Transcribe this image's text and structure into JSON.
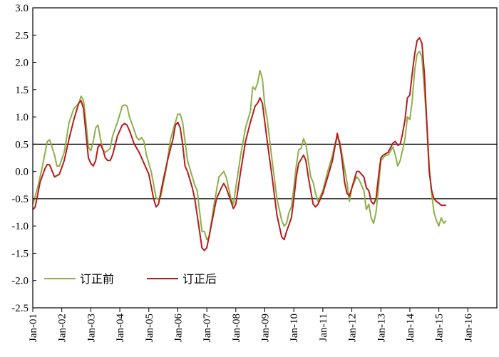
{
  "chart_data": {
    "type": "line",
    "title": "",
    "xlabel": "",
    "ylabel": "",
    "ylim": [
      -2.5,
      3.0
    ],
    "yticks": [
      "3.0",
      "2.5",
      "2.0",
      "1.5",
      "1.0",
      "0.5",
      "0.0",
      "-0.5",
      "-1.0",
      "-1.5",
      "-2.0",
      "-2.5"
    ],
    "xlim": [
      0,
      192
    ],
    "xticks": [
      {
        "label": "Jan-01",
        "x": 0
      },
      {
        "label": "Jan-02",
        "x": 12
      },
      {
        "label": "Jan-03",
        "x": 24
      },
      {
        "label": "Jan-04",
        "x": 36
      },
      {
        "label": "Jan-05",
        "x": 48
      },
      {
        "label": "Jan-06",
        "x": 60
      },
      {
        "label": "Jan-07",
        "x": 72
      },
      {
        "label": "Jan-08",
        "x": 84
      },
      {
        "label": "Jan-09",
        "x": 96
      },
      {
        "label": "Jan-10",
        "x": 108
      },
      {
        "label": "Jan-11",
        "x": 120
      },
      {
        "label": "Jan-12",
        "x": 132
      },
      {
        "label": "Jan-13",
        "x": 144
      },
      {
        "label": "Jan-14",
        "x": 156
      },
      {
        "label": "Jan-15",
        "x": 168
      },
      {
        "label": "Jan-16",
        "x": 180
      }
    ],
    "reference_lines": [
      0.5,
      -0.5
    ],
    "legend_position": "bottom-left",
    "series": [
      {
        "name": "订正前",
        "color": "#8db04a",
        "points": [
          [
            0,
            -0.6
          ],
          [
            2,
            -0.3
          ],
          [
            4,
            0.1
          ],
          [
            6,
            0.55
          ],
          [
            7,
            0.58
          ],
          [
            9,
            0.3
          ],
          [
            10,
            0.1
          ],
          [
            11,
            0.1
          ],
          [
            13,
            0.35
          ],
          [
            15,
            0.9
          ],
          [
            17,
            1.15
          ],
          [
            19,
            1.25
          ],
          [
            20,
            1.38
          ],
          [
            21,
            1.3
          ],
          [
            22,
            0.9
          ],
          [
            23,
            0.45
          ],
          [
            24,
            0.38
          ],
          [
            25,
            0.55
          ],
          [
            26,
            0.8
          ],
          [
            27,
            0.85
          ],
          [
            28,
            0.6
          ],
          [
            29,
            0.4
          ],
          [
            30,
            0.35
          ],
          [
            32,
            0.42
          ],
          [
            33,
            0.65
          ],
          [
            35,
            0.9
          ],
          [
            37,
            1.2
          ],
          [
            38,
            1.22
          ],
          [
            39,
            1.2
          ],
          [
            40,
            1.0
          ],
          [
            42,
            0.75
          ],
          [
            43,
            0.62
          ],
          [
            44,
            0.58
          ],
          [
            45,
            0.62
          ],
          [
            46,
            0.55
          ],
          [
            47,
            0.3
          ],
          [
            49,
            0.0
          ],
          [
            51,
            -0.48
          ],
          [
            52,
            -0.52
          ],
          [
            53,
            -0.45
          ],
          [
            55,
            0.0
          ],
          [
            57,
            0.6
          ],
          [
            59,
            0.9
          ],
          [
            60,
            1.05
          ],
          [
            61,
            1.05
          ],
          [
            62,
            0.9
          ],
          [
            63,
            0.55
          ],
          [
            64,
            0.2
          ],
          [
            66,
            -0.1
          ],
          [
            67,
            -0.25
          ],
          [
            68,
            -0.35
          ],
          [
            70,
            -1.1
          ],
          [
            71,
            -1.1
          ],
          [
            72,
            -1.25
          ],
          [
            73,
            -1.2
          ],
          [
            75,
            -0.6
          ],
          [
            77,
            -0.1
          ],
          [
            79,
            0.0
          ],
          [
            80,
            -0.1
          ],
          [
            82,
            -0.5
          ],
          [
            83,
            -0.6
          ],
          [
            84,
            -0.3
          ],
          [
            86,
            0.3
          ],
          [
            88,
            0.8
          ],
          [
            90,
            1.1
          ],
          [
            91,
            1.55
          ],
          [
            92,
            1.5
          ],
          [
            93,
            1.62
          ],
          [
            94,
            1.85
          ],
          [
            95,
            1.7
          ],
          [
            96,
            1.2
          ],
          [
            97,
            0.95
          ],
          [
            99,
            0.2
          ],
          [
            101,
            -0.5
          ],
          [
            103,
            -0.9
          ],
          [
            104,
            -1.0
          ],
          [
            105,
            -0.95
          ],
          [
            106,
            -0.75
          ],
          [
            107,
            -0.65
          ],
          [
            108,
            -0.3
          ],
          [
            109,
            0.1
          ],
          [
            110,
            0.4
          ],
          [
            111,
            0.42
          ],
          [
            112,
            0.6
          ],
          [
            113,
            0.5
          ],
          [
            114,
            0.2
          ],
          [
            115,
            -0.1
          ],
          [
            116,
            -0.2
          ],
          [
            117,
            -0.4
          ],
          [
            118,
            -0.55
          ],
          [
            120,
            -0.35
          ],
          [
            122,
            0.0
          ],
          [
            124,
            0.3
          ],
          [
            125,
            0.5
          ],
          [
            126,
            0.62
          ],
          [
            127,
            0.55
          ],
          [
            128,
            0.3
          ],
          [
            130,
            -0.2
          ],
          [
            131,
            -0.55
          ],
          [
            132,
            -0.3
          ],
          [
            134,
            -0.1
          ],
          [
            135,
            -0.15
          ],
          [
            136,
            -0.25
          ],
          [
            137,
            -0.35
          ],
          [
            138,
            -0.7
          ],
          [
            139,
            -0.6
          ],
          [
            140,
            -0.85
          ],
          [
            141,
            -0.95
          ],
          [
            142,
            -0.75
          ],
          [
            143,
            -0.3
          ],
          [
            144,
            0.2
          ],
          [
            146,
            0.3
          ],
          [
            147,
            0.3
          ],
          [
            149,
            0.45
          ],
          [
            150,
            0.3
          ],
          [
            151,
            0.1
          ],
          [
            152,
            0.2
          ],
          [
            154,
            0.6
          ],
          [
            155,
            1.0
          ],
          [
            156,
            0.95
          ],
          [
            157,
            1.3
          ],
          [
            158,
            1.85
          ],
          [
            159,
            2.15
          ],
          [
            160,
            2.2
          ],
          [
            161,
            2.1
          ],
          [
            162,
            1.5
          ],
          [
            163,
            0.9
          ],
          [
            164,
            0.1
          ],
          [
            165,
            -0.4
          ],
          [
            166,
            -0.75
          ],
          [
            167,
            -0.9
          ],
          [
            168,
            -1.0
          ],
          [
            169,
            -0.85
          ],
          [
            170,
            -0.95
          ],
          [
            171,
            -0.9
          ]
        ]
      },
      {
        "name": "订正后",
        "color": "#b71c1c",
        "points": [
          [
            0,
            -0.7
          ],
          [
            1,
            -0.65
          ],
          [
            3,
            -0.2
          ],
          [
            5,
            0.05
          ],
          [
            6,
            0.13
          ],
          [
            7,
            0.12
          ],
          [
            9,
            -0.1
          ],
          [
            11,
            -0.05
          ],
          [
            13,
            0.2
          ],
          [
            15,
            0.6
          ],
          [
            17,
            0.95
          ],
          [
            19,
            1.25
          ],
          [
            20,
            1.3
          ],
          [
            21,
            1.15
          ],
          [
            22,
            0.7
          ],
          [
            23,
            0.25
          ],
          [
            24,
            0.15
          ],
          [
            25,
            0.1
          ],
          [
            26,
            0.2
          ],
          [
            27,
            0.45
          ],
          [
            28,
            0.5
          ],
          [
            29,
            0.4
          ],
          [
            30,
            0.25
          ],
          [
            31,
            0.2
          ],
          [
            32,
            0.2
          ],
          [
            33,
            0.3
          ],
          [
            35,
            0.65
          ],
          [
            37,
            0.85
          ],
          [
            38,
            0.88
          ],
          [
            39,
            0.85
          ],
          [
            40,
            0.75
          ],
          [
            42,
            0.5
          ],
          [
            44,
            0.35
          ],
          [
            46,
            0.15
          ],
          [
            48,
            -0.05
          ],
          [
            50,
            -0.5
          ],
          [
            51,
            -0.65
          ],
          [
            52,
            -0.6
          ],
          [
            54,
            -0.15
          ],
          [
            56,
            0.25
          ],
          [
            58,
            0.6
          ],
          [
            59,
            0.85
          ],
          [
            60,
            0.9
          ],
          [
            61,
            0.8
          ],
          [
            62,
            0.5
          ],
          [
            63,
            0.1
          ],
          [
            64,
            0.0
          ],
          [
            66,
            -0.3
          ],
          [
            67,
            -0.5
          ],
          [
            69,
            -1.1
          ],
          [
            70,
            -1.4
          ],
          [
            71,
            -1.45
          ],
          [
            72,
            -1.4
          ],
          [
            74,
            -0.95
          ],
          [
            76,
            -0.5
          ],
          [
            78,
            -0.3
          ],
          [
            79,
            -0.22
          ],
          [
            80,
            -0.3
          ],
          [
            82,
            -0.55
          ],
          [
            83,
            -0.68
          ],
          [
            84,
            -0.6
          ],
          [
            85,
            -0.3
          ],
          [
            86,
            0.0
          ],
          [
            88,
            0.55
          ],
          [
            90,
            0.9
          ],
          [
            92,
            1.2
          ],
          [
            93,
            1.25
          ],
          [
            94,
            1.35
          ],
          [
            95,
            1.25
          ],
          [
            96,
            0.9
          ],
          [
            97,
            0.55
          ],
          [
            99,
            -0.1
          ],
          [
            101,
            -0.8
          ],
          [
            103,
            -1.2
          ],
          [
            104,
            -1.25
          ],
          [
            105,
            -1.1
          ],
          [
            107,
            -0.85
          ],
          [
            108,
            -0.5
          ],
          [
            109,
            -0.1
          ],
          [
            110,
            0.15
          ],
          [
            112,
            0.3
          ],
          [
            113,
            0.2
          ],
          [
            114,
            -0.1
          ],
          [
            115,
            -0.35
          ],
          [
            116,
            -0.6
          ],
          [
            117,
            -0.65
          ],
          [
            118,
            -0.6
          ],
          [
            120,
            -0.4
          ],
          [
            122,
            -0.1
          ],
          [
            124,
            0.2
          ],
          [
            125,
            0.45
          ],
          [
            126,
            0.7
          ],
          [
            127,
            0.5
          ],
          [
            128,
            0.2
          ],
          [
            129,
            -0.2
          ],
          [
            130,
            -0.4
          ],
          [
            131,
            -0.45
          ],
          [
            132,
            -0.3
          ],
          [
            133,
            -0.15
          ],
          [
            134,
            0.0
          ],
          [
            135,
            0.0
          ],
          [
            136,
            -0.05
          ],
          [
            137,
            -0.1
          ],
          [
            138,
            -0.3
          ],
          [
            139,
            -0.35
          ],
          [
            140,
            -0.55
          ],
          [
            141,
            -0.6
          ],
          [
            142,
            -0.5
          ],
          [
            143,
            -0.1
          ],
          [
            144,
            0.25
          ],
          [
            145,
            0.3
          ],
          [
            147,
            0.35
          ],
          [
            149,
            0.52
          ],
          [
            150,
            0.55
          ],
          [
            151,
            0.48
          ],
          [
            152,
            0.5
          ],
          [
            153,
            0.7
          ],
          [
            154,
            0.95
          ],
          [
            155,
            1.35
          ],
          [
            156,
            1.4
          ],
          [
            157,
            1.8
          ],
          [
            158,
            2.15
          ],
          [
            159,
            2.4
          ],
          [
            160,
            2.45
          ],
          [
            161,
            2.35
          ],
          [
            162,
            1.8
          ],
          [
            163,
            0.9
          ],
          [
            164,
            0.0
          ],
          [
            165,
            -0.35
          ],
          [
            166,
            -0.5
          ],
          [
            167,
            -0.55
          ],
          [
            168,
            -0.58
          ],
          [
            169,
            -0.62
          ],
          [
            170,
            -0.62
          ],
          [
            171,
            -0.62
          ]
        ]
      }
    ]
  }
}
